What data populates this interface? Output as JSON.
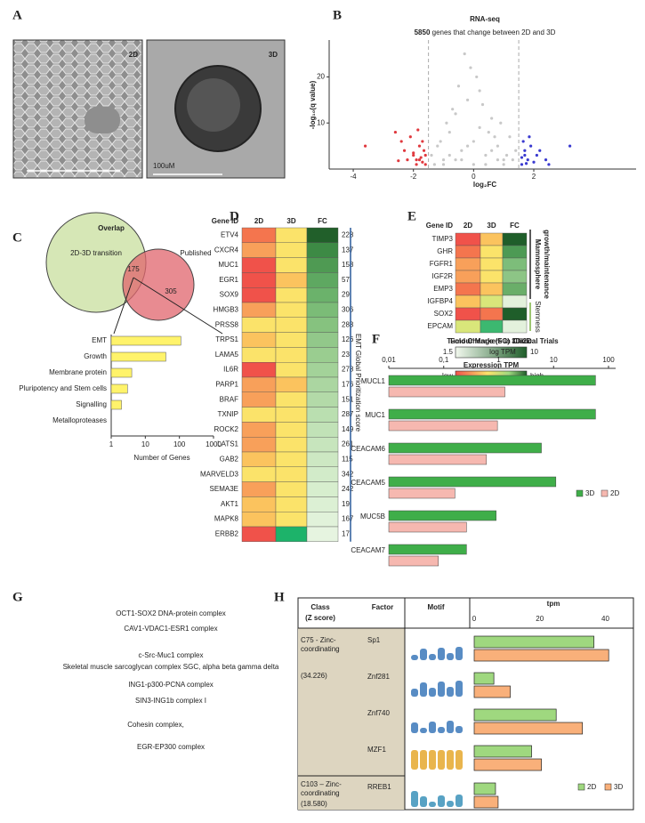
{
  "chart_data": [
    {
      "type": "image",
      "label": "A",
      "panels": [
        "2D",
        "3D"
      ],
      "scale_label": "100uM"
    },
    {
      "type": "scatter",
      "label": "B",
      "title": "RNA-seq",
      "gene_count": 5850,
      "subtitle": " genes that change between 2D and 3D",
      "xlabel": "log₂FC",
      "ylabel": "-log₁₀(q value)",
      "xlim": [
        -4.8,
        5.4
      ],
      "ylim": [
        0,
        28
      ],
      "xticks": [
        -4,
        -2,
        0,
        2
      ],
      "yticks": [
        10,
        20
      ],
      "thresholds": [
        -1.5,
        1.5
      ],
      "series": [
        {
          "color": "#c8c8c8",
          "x": [
            -1.4,
            -1.2,
            -1.0,
            -0.8,
            -0.6,
            -0.4,
            -0.2,
            0,
            0.2,
            0.4,
            0.6,
            0.8,
            1.0,
            1.2,
            1.4,
            -1.3,
            -0.9,
            -0.5,
            -0.1,
            0.3,
            0.7,
            1.1,
            -1.1,
            -0.7,
            -0.3,
            0.1,
            0.5,
            0.9,
            1.3,
            -0.6,
            0.2,
            -0.2,
            0.4,
            -0.8,
            0.6,
            0,
            -1.0,
            1.0,
            -0.4,
            0.8
          ],
          "values": [
            3,
            5,
            2,
            8,
            12,
            4,
            15,
            6,
            9,
            3,
            11,
            5,
            2,
            7,
            4,
            1,
            10,
            18,
            22,
            14,
            7,
            3,
            6,
            13,
            25,
            20,
            8,
            10,
            2,
            2,
            17,
            5,
            1,
            3,
            4,
            1,
            1,
            1,
            2,
            2
          ]
        },
        {
          "color": "#e0393e",
          "x": [
            -2.6,
            -2.4,
            -2.3,
            -2.1,
            -2.0,
            -1.9,
            -1.8,
            -1.75,
            -1.7,
            -1.65,
            -1.6,
            -2.2,
            -1.85,
            -1.7,
            -2.5,
            -1.6,
            -3.6,
            -1.9,
            -2.0,
            -1.8
          ],
          "values": [
            8,
            6,
            4,
            7,
            3,
            2,
            5,
            2.5,
            1.5,
            4,
            1,
            2,
            8.5,
            6,
            1.8,
            3,
            5,
            1,
            3.5,
            2
          ]
        },
        {
          "color": "#3a3ad0",
          "x": [
            1.6,
            1.7,
            1.8,
            1.9,
            2.0,
            2.2,
            2.4,
            1.65,
            1.75,
            2.1,
            3.2,
            1.6,
            1.85,
            2.5,
            1.7
          ],
          "values": [
            1,
            3,
            2,
            5,
            1.5,
            4,
            2,
            6,
            1.2,
            3,
            5,
            2.5,
            7,
            1,
            4
          ]
        }
      ]
    },
    {
      "type": "venn",
      "label": "C",
      "title": "Overlap",
      "sets": [
        "2D-3D transition",
        "Published"
      ],
      "values": [
        175,
        305
      ],
      "colors": [
        "#d6e7b6",
        "#e0646c"
      ]
    },
    {
      "type": "barh",
      "categories": [
        "EMT",
        "Growth",
        "Membrane protein",
        "Pluripotency and Stem cells",
        "Signalling",
        "Metalloproteases"
      ],
      "values": [
        110,
        40,
        4,
        3,
        2,
        1
      ],
      "xlim": [
        1,
        1000
      ],
      "xticks": [
        1,
        10,
        100,
        1000
      ],
      "log": true,
      "xlabel": "Number of Genes",
      "color": "#fff36b"
    },
    {
      "type": "heatmap",
      "label": "D",
      "columns": [
        "Gene ID",
        "2D",
        "3D",
        "FC"
      ],
      "rows": [
        "ETV4",
        "CXCR4",
        "MUC1",
        "EGR1",
        "SOX9",
        "HMGB3",
        "PRSS8",
        "TRPS1",
        "LAMA5",
        "IL6R",
        "PARP1",
        "BRAF",
        "TXNIP",
        "ROCK2",
        "LATS1",
        "GAB2",
        "MARVELD3",
        "SEMA3E",
        "AKT1",
        "MAPK8",
        "ERBB2"
      ],
      "values": [
        228,
        137,
        158,
        57,
        29,
        306,
        283,
        126,
        23,
        278,
        176,
        151,
        287,
        149,
        261,
        115,
        342,
        242,
        19,
        167,
        17
      ],
      "colors": [
        [
          "#f4754e",
          "#f8a05a",
          "#f0524a",
          "#f0524a",
          "#f0524a",
          "#f8a05a",
          "#fbe36a",
          "#fbc35e",
          "#fbe36a",
          "#f0524a",
          "#f8a05a",
          "#f8a05a",
          "#fbe36a",
          "#f8a05a",
          "#f8a05a",
          "#fbc35e",
          "#fbe36a",
          "#f8a05a",
          "#fbc35e",
          "#fbc35e",
          "#f0524a"
        ],
        [
          "#fbe36a",
          "#fbe36a",
          "#fbe36a",
          "#fbc35e",
          "#fbe36a",
          "#fbe36a",
          "#fbe36a",
          "#fbe36a",
          "#fbe36a",
          "#fbe36a",
          "#fbc35e",
          "#fbe36a",
          "#fbe36a",
          "#fbe36a",
          "#fbe36a",
          "#fbe36a",
          "#fbe36a",
          "#fbe36a",
          "#fbe36a",
          "#fbe36a",
          "#1db36a"
        ],
        [
          "#215f2a",
          "#3d8a45",
          "#4f9a53",
          "#5ea861",
          "#6bb26b",
          "#7bbc77",
          "#86c27f",
          "#92c88a",
          "#9acd90",
          "#a3d299",
          "#abd6a1",
          "#b3daa8",
          "#badfb0",
          "#c1e2b7",
          "#c7e5bd",
          "#cde8c3",
          "#d2ebc9",
          "#d7eece",
          "#dcf0d4",
          "#e1f2da",
          "#e6f4e0"
        ]
      ],
      "side_label": "EMT Global Prioritization score"
    },
    {
      "type": "heatmap",
      "label": "E",
      "columns": [
        "Gene ID",
        "2D",
        "3D",
        "FC"
      ],
      "rows": [
        "TIMP3",
        "GHR",
        "FGFR1",
        "IGF2R",
        "EMP3",
        "IGFBP4",
        "SOX2",
        "EPCAM"
      ],
      "colors": [
        [
          "#f0524a",
          "#f4754e",
          "#f8a05a",
          "#f8a05a",
          "#f4754e",
          "#fbc35e",
          "#f0524a",
          "#d9e67a"
        ],
        [
          "#fbc35e",
          "#fbe36a",
          "#fbe36a",
          "#fbe36a",
          "#fbc35e",
          "#d9e67a",
          "#f4754e",
          "#3cb870"
        ],
        [
          "#1f5e2a",
          "#4d9a54",
          "#7dbd7a",
          "#8dc586",
          "#6aae69",
          "#e3f1dc",
          "#1f5e2a",
          "#e3f1dc"
        ]
      ],
      "side_labels": [
        "Mammosphere",
        "growth/maintenance",
        "Stemness"
      ],
      "fc_legend": {
        "title": "Fold Change (FC) 3D/2D",
        "range": [
          1.5,
          10
        ]
      },
      "tpm_legend": {
        "title": "Expression TPM",
        "labels": [
          "low",
          "high"
        ]
      }
    },
    {
      "type": "barh_grouped",
      "label": "F",
      "title": "Tumour Markers in Clinical Trials",
      "subtitle": "log TPM",
      "categories": [
        "MUCL1",
        "MUC1",
        "CEACAM6",
        "CEACAM5",
        "MUC5B",
        "CEACAM7"
      ],
      "series": [
        {
          "name": "3D",
          "color": "#3fae49",
          "values": [
            58,
            58,
            6,
            11,
            0.9,
            0.26
          ]
        },
        {
          "name": "2D",
          "color": "#f6b8b0",
          "values": [
            1.3,
            0.95,
            0.6,
            0.16,
            0.26,
            0.08
          ]
        }
      ],
      "xlim": [
        0.01,
        100
      ],
      "xticks": [
        {
          "value": 0.01,
          "label": "0,01"
        },
        {
          "value": 0.1,
          "label": "0,1"
        },
        1,
        10,
        100
      ],
      "log": true,
      "legend": "right"
    },
    {
      "type": "wordcloud",
      "label": "G",
      "words": [
        "OCT1-SOX2 DNA-protein complex",
        "CAV1-VDAC1-ESR1 complex",
        "c-Src-Muc1 complex",
        "Skeletal muscle sarcoglycan complex SGC, alpha beta gamma delta",
        "ING1-p300-PCNA complex",
        "SIN3-ING1b complex I",
        "Cohesin complex,",
        "EGR-EP300 complex"
      ],
      "colors": [
        "#f5b8a8",
        "#f07c6c",
        "#1a237e",
        "#aab7d8",
        "#2ea04a",
        "#8a8ad0",
        "#2aa34a",
        "#5060b0"
      ]
    },
    {
      "type": "motif_table",
      "label": "H",
      "headers": {
        "class": [
          "Class",
          "(Z score)"
        ],
        "factor": "Factor",
        "motif": "Motif",
        "axis": "tpm"
      },
      "groups": [
        {
          "class": [
            "C75 - Zinc-",
            "coordinating"
          ],
          "z": "(34.226)"
        },
        {
          "class": [
            "C103 – Zinc-",
            "coordinating"
          ],
          "z": "(18.580)"
        }
      ],
      "categories": [
        "Sp1",
        "Znf281",
        "Znf740",
        "MZF1",
        "RREB1"
      ],
      "series": [
        {
          "name": "2D",
          "color": "#9fd87f",
          "values": [
            36.5,
            6,
            25,
            17.5,
            6.5
          ]
        },
        {
          "name": "3D",
          "color": "#f9b07a",
          "values": [
            41,
            11,
            33,
            20.5,
            7.3
          ]
        }
      ],
      "xlim": [
        0,
        48
      ],
      "xticks": [
        0,
        20,
        40
      ]
    }
  ]
}
